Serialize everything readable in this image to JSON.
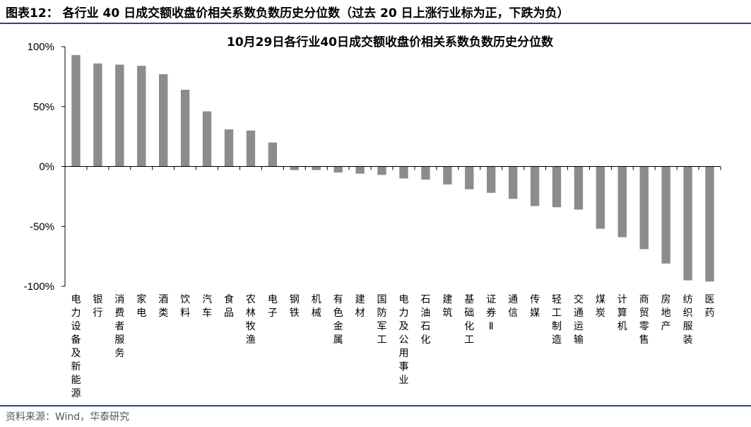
{
  "figure": {
    "title": "图表12：  各行业 40 日成交额收盘价相关系数负数历史分位数（过去 20 日上涨行业标为正，下跌为负）",
    "source": "资料来源：Wind，华泰研究",
    "rule_color": "#27477e"
  },
  "chart_data": {
    "type": "bar",
    "title": "10月29日各行业40日成交额收盘价相关系数负数历史分位数",
    "xlabel": "",
    "ylabel": "",
    "ylim": [
      -100,
      100
    ],
    "yticks": [
      100,
      50,
      0,
      -50,
      -100
    ],
    "ytick_labels": [
      "100%",
      "50%",
      "0%",
      "-50%",
      "-100%"
    ],
    "grid": false,
    "bar_color": "#8c8c8c",
    "categories": [
      "电力设备及新能源",
      "银行",
      "消费者服务",
      "家电",
      "酒类",
      "饮料",
      "汽车",
      "食品",
      "农林牧渔",
      "电子",
      "钢铁",
      "机械",
      "有色金属",
      "建材",
      "国防军工",
      "电力及公用事业",
      "石油石化",
      "建筑",
      "基础化工",
      "证券Ⅱ",
      "通信",
      "传媒",
      "轻工制造",
      "交通运输",
      "煤炭",
      "计算机",
      "商贸零售",
      "房地产",
      "纺织服装",
      "医药"
    ],
    "values": [
      93,
      86,
      85,
      84,
      77,
      64,
      46,
      31,
      30,
      20,
      -3,
      -3,
      -5,
      -6,
      -7,
      -10,
      -11,
      -15,
      -19,
      -22,
      -27,
      -33,
      -34,
      -36,
      -52,
      -59,
      -69,
      -81,
      -95,
      -96
    ]
  }
}
